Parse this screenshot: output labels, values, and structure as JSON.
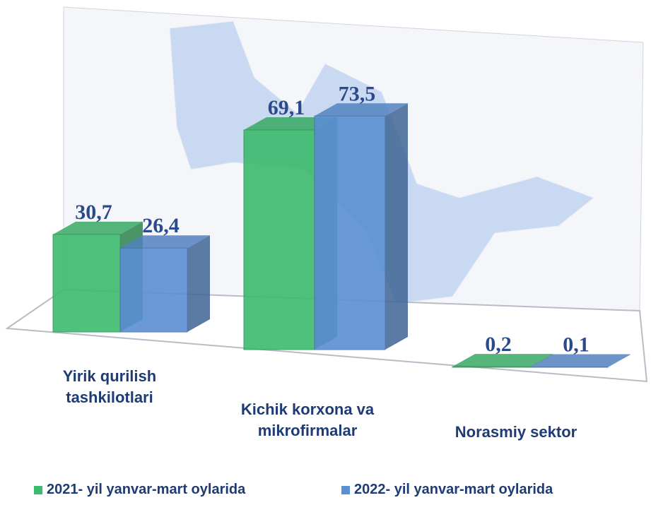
{
  "chart_data": {
    "type": "bar3d",
    "categories": [
      "Yirik qurilish tashkilotlari",
      "Kichik korxona va mikrofirmalar",
      "Norasmiy sektor"
    ],
    "series": [
      {
        "name": "2021-  yil yanvar-mart oylarida",
        "color": "#3dbb6e",
        "values": [
          30.7,
          69.1,
          0.2
        ],
        "value_labels": [
          "30,7",
          "69,1",
          "0,2"
        ]
      },
      {
        "name": "2022-  yil yanvar-mart oylarida",
        "color": "#5b8fd4",
        "values": [
          26.4,
          73.5,
          0.1
        ],
        "value_labels": [
          "26,4",
          "73,5",
          "0,1"
        ]
      }
    ]
  }
}
